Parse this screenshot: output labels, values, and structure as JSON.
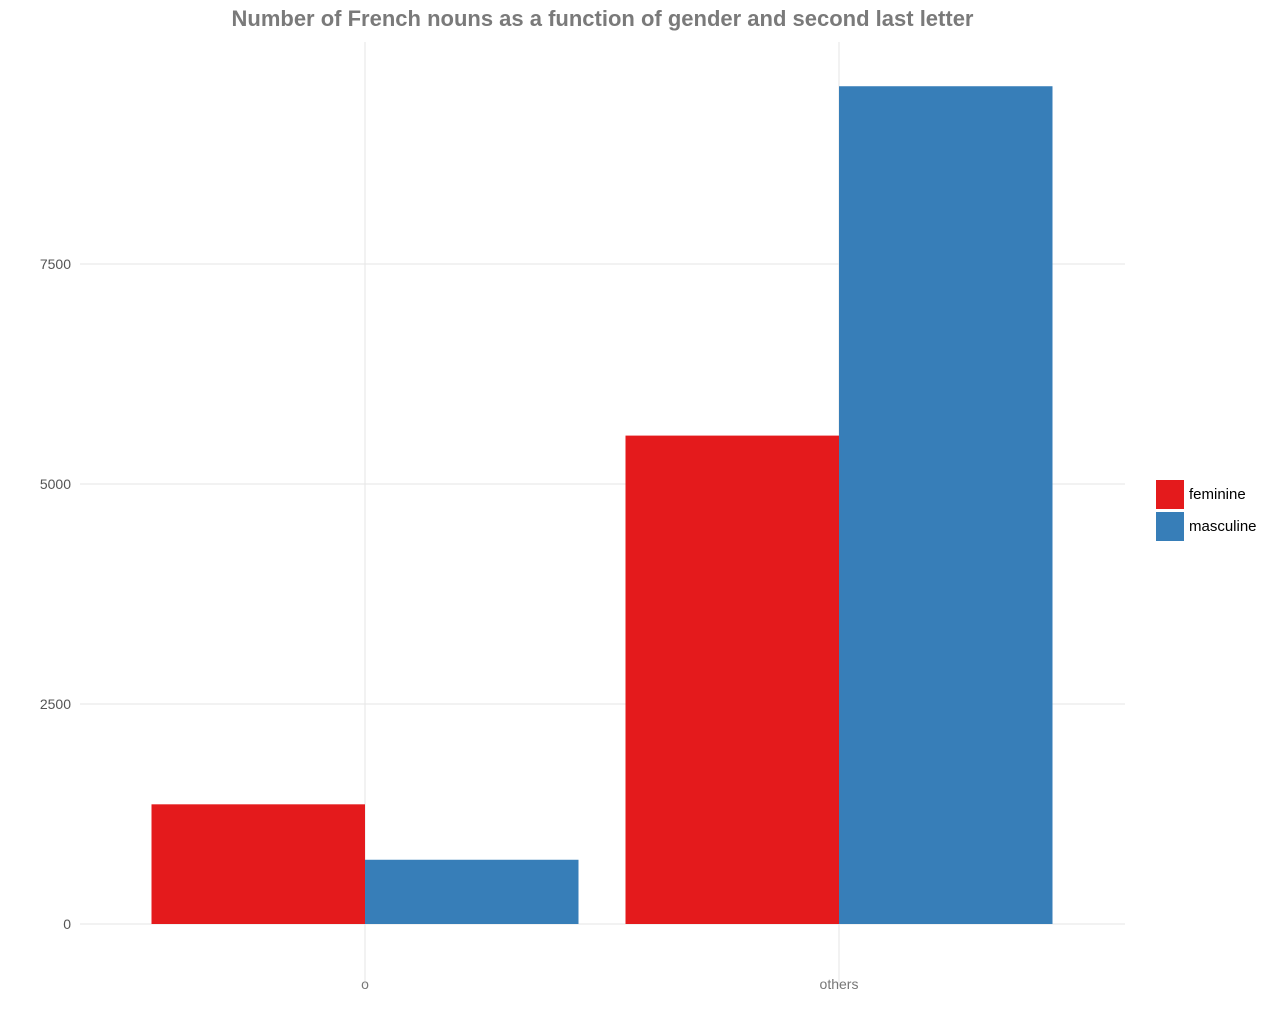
{
  "chart_data": {
    "type": "bar",
    "title": "Number of French nouns as a function of gender and second last letter",
    "xlabel": "",
    "ylabel": "",
    "categories": [
      "o",
      "others"
    ],
    "series": [
      {
        "name": "feminine",
        "values": [
          1360,
          5550
        ],
        "color": "#e41a1c"
      },
      {
        "name": "masculine",
        "values": [
          730,
          9520
        ],
        "color": "#377eb8"
      }
    ],
    "yticks": [
      0,
      2500,
      5000,
      7500
    ],
    "ylim": [
      -700,
      10350
    ],
    "grid": true,
    "legend_position": "right"
  }
}
